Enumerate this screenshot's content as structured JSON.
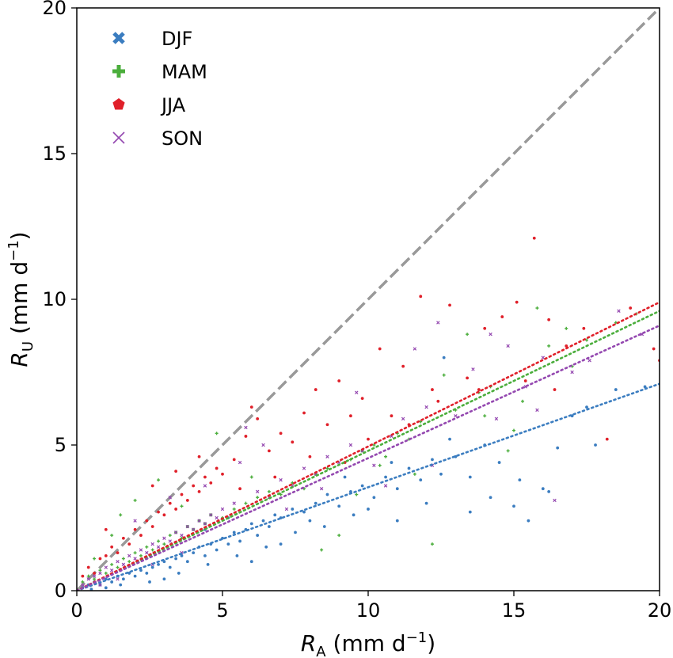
{
  "chart_data": {
    "type": "scatter",
    "title": "",
    "xlabel": {
      "symbol": "R",
      "subscript": "A",
      "unit_prefix": " (mm d",
      "unit_exp": "−1",
      "unit_suffix": ")"
    },
    "ylabel": {
      "symbol": "R",
      "subscript": "U",
      "unit_prefix": " (mm d",
      "unit_exp": "−1",
      "unit_suffix": ")"
    },
    "xlim": [
      0,
      20
    ],
    "ylim": [
      0,
      20
    ],
    "xticks": [
      0,
      5,
      10,
      15,
      20
    ],
    "yticks": [
      0,
      5,
      10,
      15,
      20
    ],
    "grid": false,
    "legend_position": "top-left",
    "one_to_one_line": {
      "x": [
        0,
        20
      ],
      "y": [
        0,
        20
      ],
      "style": "dashed",
      "color": "#999999"
    },
    "series": [
      {
        "name": "DJF",
        "color": "#3b7dc0",
        "marker": "circle",
        "fit": {
          "slope": 0.355,
          "intercept": 0.0
        },
        "points": [
          [
            0.2,
            0.1
          ],
          [
            0.4,
            0.2
          ],
          [
            0.6,
            0.3
          ],
          [
            0.8,
            0.2
          ],
          [
            1.0,
            0.4
          ],
          [
            1.2,
            0.3
          ],
          [
            1.4,
            0.5
          ],
          [
            1.6,
            0.4
          ],
          [
            1.8,
            0.6
          ],
          [
            2.0,
            0.5
          ],
          [
            2.2,
            0.7
          ],
          [
            2.4,
            0.6
          ],
          [
            2.6,
            0.8
          ],
          [
            2.8,
            0.9
          ],
          [
            3.0,
            1.0
          ],
          [
            3.2,
            0.8
          ],
          [
            3.4,
            1.1
          ],
          [
            3.6,
            1.2
          ],
          [
            3.8,
            1.0
          ],
          [
            4.0,
            1.3
          ],
          [
            4.2,
            1.5
          ],
          [
            4.4,
            1.2
          ],
          [
            4.6,
            1.6
          ],
          [
            4.8,
            1.4
          ],
          [
            5.0,
            1.8
          ],
          [
            5.2,
            1.6
          ],
          [
            5.4,
            2.0
          ],
          [
            5.6,
            1.7
          ],
          [
            5.8,
            2.1
          ],
          [
            6.0,
            2.3
          ],
          [
            6.2,
            1.9
          ],
          [
            6.4,
            2.4
          ],
          [
            6.6,
            2.2
          ],
          [
            6.8,
            2.6
          ],
          [
            7.0,
            2.5
          ],
          [
            7.4,
            2.8
          ],
          [
            7.8,
            2.7
          ],
          [
            8.2,
            3.0
          ],
          [
            8.6,
            3.3
          ],
          [
            9.0,
            2.9
          ],
          [
            9.4,
            3.4
          ],
          [
            9.8,
            3.6
          ],
          [
            10.2,
            3.2
          ],
          [
            10.6,
            3.9
          ],
          [
            11.0,
            3.5
          ],
          [
            11.4,
            4.2
          ],
          [
            11.8,
            3.8
          ],
          [
            12.2,
            4.5
          ],
          [
            12.6,
            8.0
          ],
          [
            12.5,
            4.0
          ],
          [
            13.0,
            4.6
          ],
          [
            13.5,
            3.9
          ],
          [
            14.0,
            5.0
          ],
          [
            14.5,
            4.4
          ],
          [
            15.0,
            2.9
          ],
          [
            15.5,
            2.4
          ],
          [
            16.0,
            3.5
          ],
          [
            16.5,
            4.9
          ],
          [
            17.0,
            6.0
          ],
          [
            17.5,
            6.3
          ],
          [
            18.5,
            6.9
          ],
          [
            19.5,
            7.0
          ],
          [
            2.5,
            0.3
          ],
          [
            3.5,
            0.6
          ],
          [
            4.5,
            0.9
          ],
          [
            5.5,
            1.2
          ],
          [
            6.5,
            1.5
          ],
          [
            7.5,
            2.0
          ],
          [
            8.5,
            2.2
          ],
          [
            9.5,
            2.6
          ],
          [
            1.0,
            0.1
          ],
          [
            1.5,
            0.2
          ],
          [
            0.5,
            0.05
          ],
          [
            3.0,
            0.4
          ],
          [
            6.0,
            1.0
          ],
          [
            7.0,
            1.6
          ],
          [
            10.0,
            2.8
          ],
          [
            11.0,
            2.4
          ],
          [
            12.0,
            3.0
          ],
          [
            13.5,
            2.7
          ],
          [
            15.2,
            3.8
          ],
          [
            16.2,
            3.4
          ],
          [
            14.2,
            3.2
          ],
          [
            17.8,
            5.0
          ],
          [
            8.0,
            2.4
          ],
          [
            9.2,
            3.9
          ],
          [
            10.8,
            4.4
          ],
          [
            12.8,
            5.2
          ],
          [
            5.2,
            2.5
          ],
          [
            4.4,
            2.1
          ]
        ]
      },
      {
        "name": "MAM",
        "color": "#4bae3c",
        "marker": "plus",
        "fit": {
          "slope": 0.48,
          "intercept": 0.0
        },
        "points": [
          [
            0.2,
            0.3
          ],
          [
            0.4,
            0.5
          ],
          [
            0.6,
            0.4
          ],
          [
            0.8,
            0.7
          ],
          [
            1.0,
            0.6
          ],
          [
            1.2,
            0.9
          ],
          [
            1.4,
            0.8
          ],
          [
            1.6,
            1.1
          ],
          [
            1.8,
            1.0
          ],
          [
            2.0,
            1.3
          ],
          [
            2.2,
            1.2
          ],
          [
            2.4,
            1.5
          ],
          [
            2.6,
            1.4
          ],
          [
            2.8,
            1.7
          ],
          [
            3.0,
            1.6
          ],
          [
            3.2,
            1.9
          ],
          [
            3.4,
            2.0
          ],
          [
            3.6,
            1.8
          ],
          [
            3.8,
            2.2
          ],
          [
            4.0,
            2.1
          ],
          [
            4.2,
            2.4
          ],
          [
            4.4,
            2.3
          ],
          [
            4.6,
            2.6
          ],
          [
            4.8,
            5.4
          ],
          [
            5.0,
            2.5
          ],
          [
            5.4,
            2.8
          ],
          [
            5.8,
            3.0
          ],
          [
            6.2,
            3.2
          ],
          [
            6.6,
            3.4
          ],
          [
            7.0,
            3.3
          ],
          [
            7.4,
            3.7
          ],
          [
            7.8,
            3.5
          ],
          [
            8.2,
            4.0
          ],
          [
            8.6,
            4.2
          ],
          [
            9.0,
            1.9
          ],
          [
            9.4,
            4.5
          ],
          [
            9.8,
            4.8
          ],
          [
            10.2,
            5.0
          ],
          [
            10.6,
            4.6
          ],
          [
            11.0,
            5.4
          ],
          [
            11.4,
            5.2
          ],
          [
            11.8,
            5.8
          ],
          [
            12.2,
            1.6
          ],
          [
            12.6,
            7.4
          ],
          [
            13.0,
            6.2
          ],
          [
            13.4,
            8.8
          ],
          [
            13.8,
            6.8
          ],
          [
            14.2,
            7.0
          ],
          [
            14.8,
            4.8
          ],
          [
            15.3,
            6.5
          ],
          [
            15.8,
            9.7
          ],
          [
            16.2,
            8.4
          ],
          [
            16.8,
            9.0
          ],
          [
            17.5,
            8.6
          ],
          [
            18.5,
            9.2
          ],
          [
            19.2,
            9.5
          ],
          [
            1.5,
            2.6
          ],
          [
            2.0,
            3.1
          ],
          [
            2.8,
            3.8
          ],
          [
            3.6,
            2.9
          ],
          [
            6.0,
            3.9
          ],
          [
            8.4,
            1.4
          ],
          [
            9.6,
            3.3
          ],
          [
            10.4,
            4.3
          ],
          [
            11.6,
            4.0
          ],
          [
            14.0,
            6.0
          ],
          [
            15.0,
            5.5
          ],
          [
            17.0,
            7.7
          ],
          [
            0.6,
            1.1
          ],
          [
            1.2,
            1.9
          ]
        ]
      },
      {
        "name": "JJA",
        "color": "#e0202a",
        "marker": "circle",
        "fit": {
          "slope": 0.495,
          "intercept": 0.0
        },
        "points": [
          [
            0.2,
            0.5
          ],
          [
            0.4,
            0.8
          ],
          [
            0.6,
            0.6
          ],
          [
            0.8,
            1.1
          ],
          [
            1.0,
            1.2
          ],
          [
            1.2,
            1.5
          ],
          [
            1.4,
            1.3
          ],
          [
            1.6,
            1.8
          ],
          [
            1.8,
            1.6
          ],
          [
            2.0,
            2.1
          ],
          [
            2.2,
            1.9
          ],
          [
            2.4,
            2.4
          ],
          [
            2.6,
            2.2
          ],
          [
            2.8,
            2.7
          ],
          [
            3.0,
            2.6
          ],
          [
            3.2,
            3.0
          ],
          [
            3.4,
            2.8
          ],
          [
            3.6,
            3.3
          ],
          [
            3.8,
            3.1
          ],
          [
            4.0,
            3.6
          ],
          [
            4.2,
            3.4
          ],
          [
            4.4,
            3.9
          ],
          [
            4.6,
            3.7
          ],
          [
            4.8,
            4.2
          ],
          [
            5.0,
            4.0
          ],
          [
            5.4,
            4.5
          ],
          [
            5.8,
            5.3
          ],
          [
            6.2,
            5.9
          ],
          [
            6.6,
            4.8
          ],
          [
            7.0,
            5.4
          ],
          [
            7.4,
            5.1
          ],
          [
            7.8,
            6.1
          ],
          [
            8.2,
            6.9
          ],
          [
            8.6,
            5.7
          ],
          [
            9.0,
            7.2
          ],
          [
            9.4,
            6.0
          ],
          [
            9.8,
            6.6
          ],
          [
            10.4,
            8.3
          ],
          [
            10.8,
            6.0
          ],
          [
            11.2,
            7.7
          ],
          [
            11.8,
            10.1
          ],
          [
            12.2,
            6.9
          ],
          [
            12.8,
            9.8
          ],
          [
            13.4,
            7.3
          ],
          [
            14.0,
            9.0
          ],
          [
            14.6,
            9.4
          ],
          [
            15.1,
            9.9
          ],
          [
            15.7,
            12.1
          ],
          [
            16.2,
            9.3
          ],
          [
            16.8,
            8.4
          ],
          [
            17.4,
            9.0
          ],
          [
            18.2,
            5.2
          ],
          [
            19.0,
            9.7
          ],
          [
            19.8,
            8.3
          ],
          [
            20.0,
            7.9
          ],
          [
            2.6,
            3.6
          ],
          [
            3.4,
            4.1
          ],
          [
            4.2,
            4.6
          ],
          [
            5.6,
            3.5
          ],
          [
            6.8,
            3.9
          ],
          [
            8.0,
            4.6
          ],
          [
            9.2,
            4.4
          ],
          [
            10.0,
            5.2
          ],
          [
            11.4,
            5.7
          ],
          [
            12.4,
            6.5
          ],
          [
            13.8,
            6.9
          ],
          [
            15.4,
            7.2
          ],
          [
            16.4,
            6.9
          ],
          [
            1.0,
            2.1
          ],
          [
            6.0,
            6.3
          ]
        ]
      },
      {
        "name": "SON",
        "color": "#9448b0",
        "marker": "x",
        "fit": {
          "slope": 0.455,
          "intercept": 0.0
        },
        "points": [
          [
            0.2,
            0.2
          ],
          [
            0.4,
            0.4
          ],
          [
            0.6,
            0.5
          ],
          [
            0.8,
            0.6
          ],
          [
            1.0,
            0.8
          ],
          [
            1.2,
            0.7
          ],
          [
            1.4,
            1.0
          ],
          [
            1.6,
            0.9
          ],
          [
            1.8,
            1.2
          ],
          [
            2.0,
            1.1
          ],
          [
            2.2,
            1.4
          ],
          [
            2.4,
            1.3
          ],
          [
            2.6,
            1.6
          ],
          [
            2.8,
            1.5
          ],
          [
            3.0,
            1.8
          ],
          [
            3.2,
            1.7
          ],
          [
            3.4,
            2.0
          ],
          [
            3.6,
            1.9
          ],
          [
            3.8,
            2.2
          ],
          [
            4.0,
            2.1
          ],
          [
            4.2,
            2.4
          ],
          [
            4.4,
            2.3
          ],
          [
            4.6,
            2.6
          ],
          [
            4.8,
            2.5
          ],
          [
            5.0,
            2.8
          ],
          [
            5.4,
            3.0
          ],
          [
            5.8,
            5.6
          ],
          [
            6.2,
            3.4
          ],
          [
            6.6,
            3.2
          ],
          [
            7.0,
            3.8
          ],
          [
            7.4,
            3.6
          ],
          [
            7.8,
            4.2
          ],
          [
            8.2,
            4.0
          ],
          [
            8.6,
            4.6
          ],
          [
            9.0,
            4.4
          ],
          [
            9.4,
            5.0
          ],
          [
            9.8,
            4.8
          ],
          [
            10.2,
            4.3
          ],
          [
            10.8,
            5.3
          ],
          [
            11.2,
            5.9
          ],
          [
            11.6,
            8.3
          ],
          [
            12.0,
            6.3
          ],
          [
            12.4,
            9.2
          ],
          [
            13.0,
            6.0
          ],
          [
            13.6,
            7.6
          ],
          [
            14.2,
            8.8
          ],
          [
            14.8,
            8.4
          ],
          [
            15.4,
            7.0
          ],
          [
            16.0,
            8.0
          ],
          [
            16.4,
            3.1
          ],
          [
            17.0,
            7.5
          ],
          [
            17.6,
            7.9
          ],
          [
            18.6,
            9.6
          ],
          [
            19.4,
            8.8
          ],
          [
            2.0,
            2.4
          ],
          [
            3.2,
            3.2
          ],
          [
            4.4,
            3.6
          ],
          [
            5.6,
            4.4
          ],
          [
            6.4,
            5.0
          ],
          [
            7.2,
            2.8
          ],
          [
            8.4,
            3.5
          ],
          [
            9.6,
            6.8
          ],
          [
            10.6,
            3.6
          ],
          [
            12.2,
            4.3
          ],
          [
            14.4,
            5.9
          ],
          [
            15.8,
            6.2
          ],
          [
            0.8,
            0.2
          ],
          [
            1.4,
            0.4
          ],
          [
            2.6,
            0.9
          ],
          [
            3.6,
            1.3
          ]
        ]
      }
    ]
  }
}
